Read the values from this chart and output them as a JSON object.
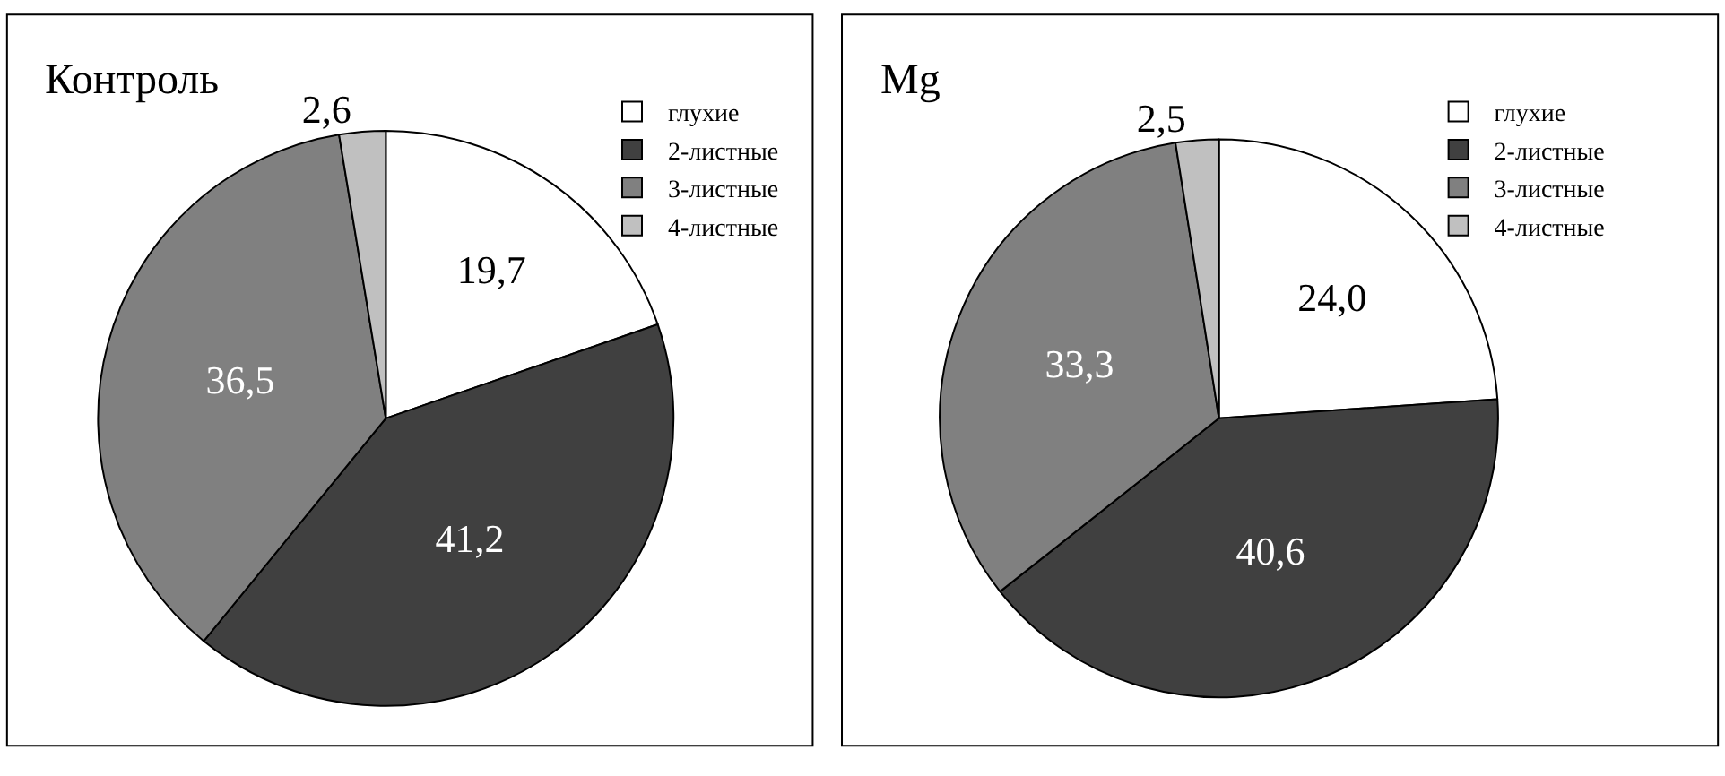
{
  "chart_data": [
    {
      "type": "pie",
      "title": "Контроль",
      "categories": [
        "глухие",
        "2-листные",
        "3-листные",
        "4-листные"
      ],
      "values": [
        19.7,
        41.2,
        36.5,
        2.6
      ],
      "colors": [
        "#ffffff",
        "#404040",
        "#808080",
        "#c0c0c0"
      ],
      "value_labels": [
        "19,7",
        "41,2",
        "36,5",
        "2,6"
      ],
      "legend": "right"
    },
    {
      "type": "pie",
      "title": "Mg",
      "categories": [
        "глухие",
        "2-листные",
        "3-листные",
        "4-листные"
      ],
      "values": [
        24.0,
        40.6,
        33.3,
        2.5
      ],
      "colors": [
        "#ffffff",
        "#404040",
        "#808080",
        "#c0c0c0"
      ],
      "value_labels": [
        "24,0",
        "40,6",
        "33,3",
        "2,5"
      ],
      "legend": "right"
    }
  ]
}
